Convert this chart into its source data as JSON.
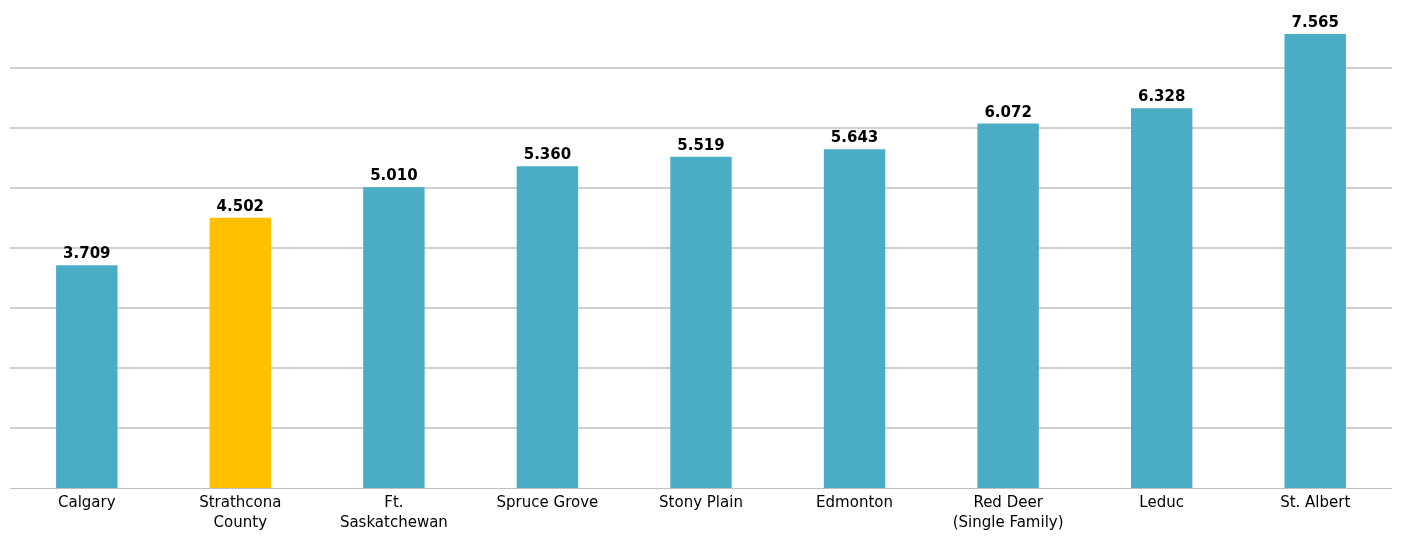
{
  "chart_data": {
    "type": "bar",
    "categories": [
      "Calgary",
      "Strathcona County",
      "Ft. Saskatchewan",
      "Spruce Grove",
      "Stony Plain",
      "Edmonton",
      "Red Deer (Single Family)",
      "Leduc",
      "St. Albert"
    ],
    "values": [
      3.709,
      4.502,
      5.01,
      5.36,
      5.519,
      5.643,
      6.072,
      6.328,
      7.565
    ],
    "value_labels": [
      "3.709",
      "4.502",
      "5.010",
      "5.360",
      "5.519",
      "5.643",
      "6.072",
      "6.328",
      "7.565"
    ],
    "colors": [
      "#4bacc6",
      "#ffc000",
      "#4bacc6",
      "#4bacc6",
      "#4bacc6",
      "#4bacc6",
      "#4bacc6",
      "#4bacc6",
      "#4bacc6"
    ],
    "grid": "y",
    "tick_labels": "x",
    "legend": false
  }
}
